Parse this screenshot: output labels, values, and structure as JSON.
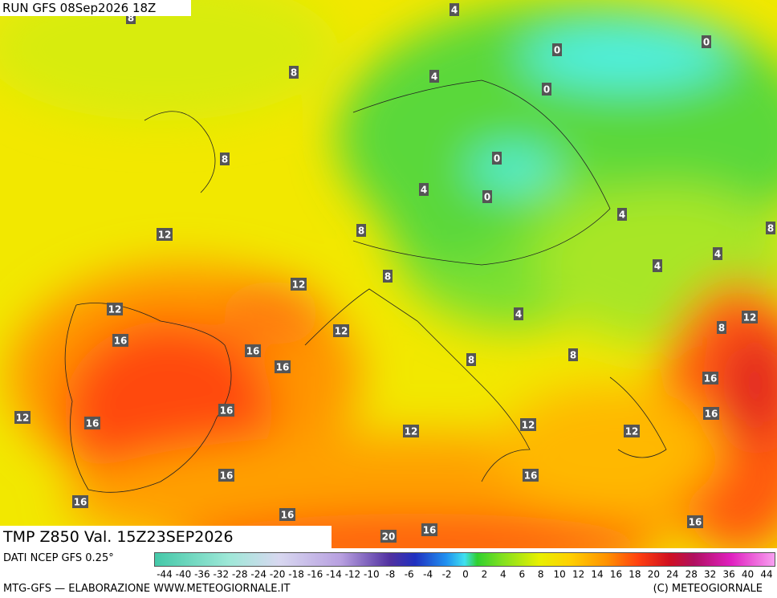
{
  "header": {
    "title": "RUN GFS 08Sep2026 18Z"
  },
  "map": {
    "contour_labels": [
      8,
      4,
      0,
      0,
      8,
      4,
      0,
      8,
      0,
      4,
      0,
      4,
      12,
      8,
      8,
      4,
      4,
      12,
      8,
      12,
      4,
      12,
      8,
      12,
      16,
      16,
      8,
      16,
      8,
      16,
      12,
      16,
      16,
      16,
      12,
      12,
      12,
      16,
      16,
      16,
      16,
      16,
      20,
      16
    ]
  },
  "footer": {
    "field": "TMP Z850 Val. 15Z23SEP2026",
    "source": "DATI NCEP GFS 0.25°",
    "credit": "MTG-GFS — ELABORAZIONE WWW.METEOGIORNALE.IT",
    "copyright": "(C) METEOGIORNALE"
  },
  "legend": {
    "ticks": [
      -44,
      -40,
      -36,
      -32,
      -28,
      -24,
      -20,
      -18,
      -16,
      -14,
      -12,
      -10,
      -8,
      -6,
      -4,
      -2,
      0,
      2,
      4,
      6,
      8,
      10,
      12,
      14,
      16,
      18,
      20,
      24,
      28,
      32,
      36,
      40,
      44
    ]
  }
}
